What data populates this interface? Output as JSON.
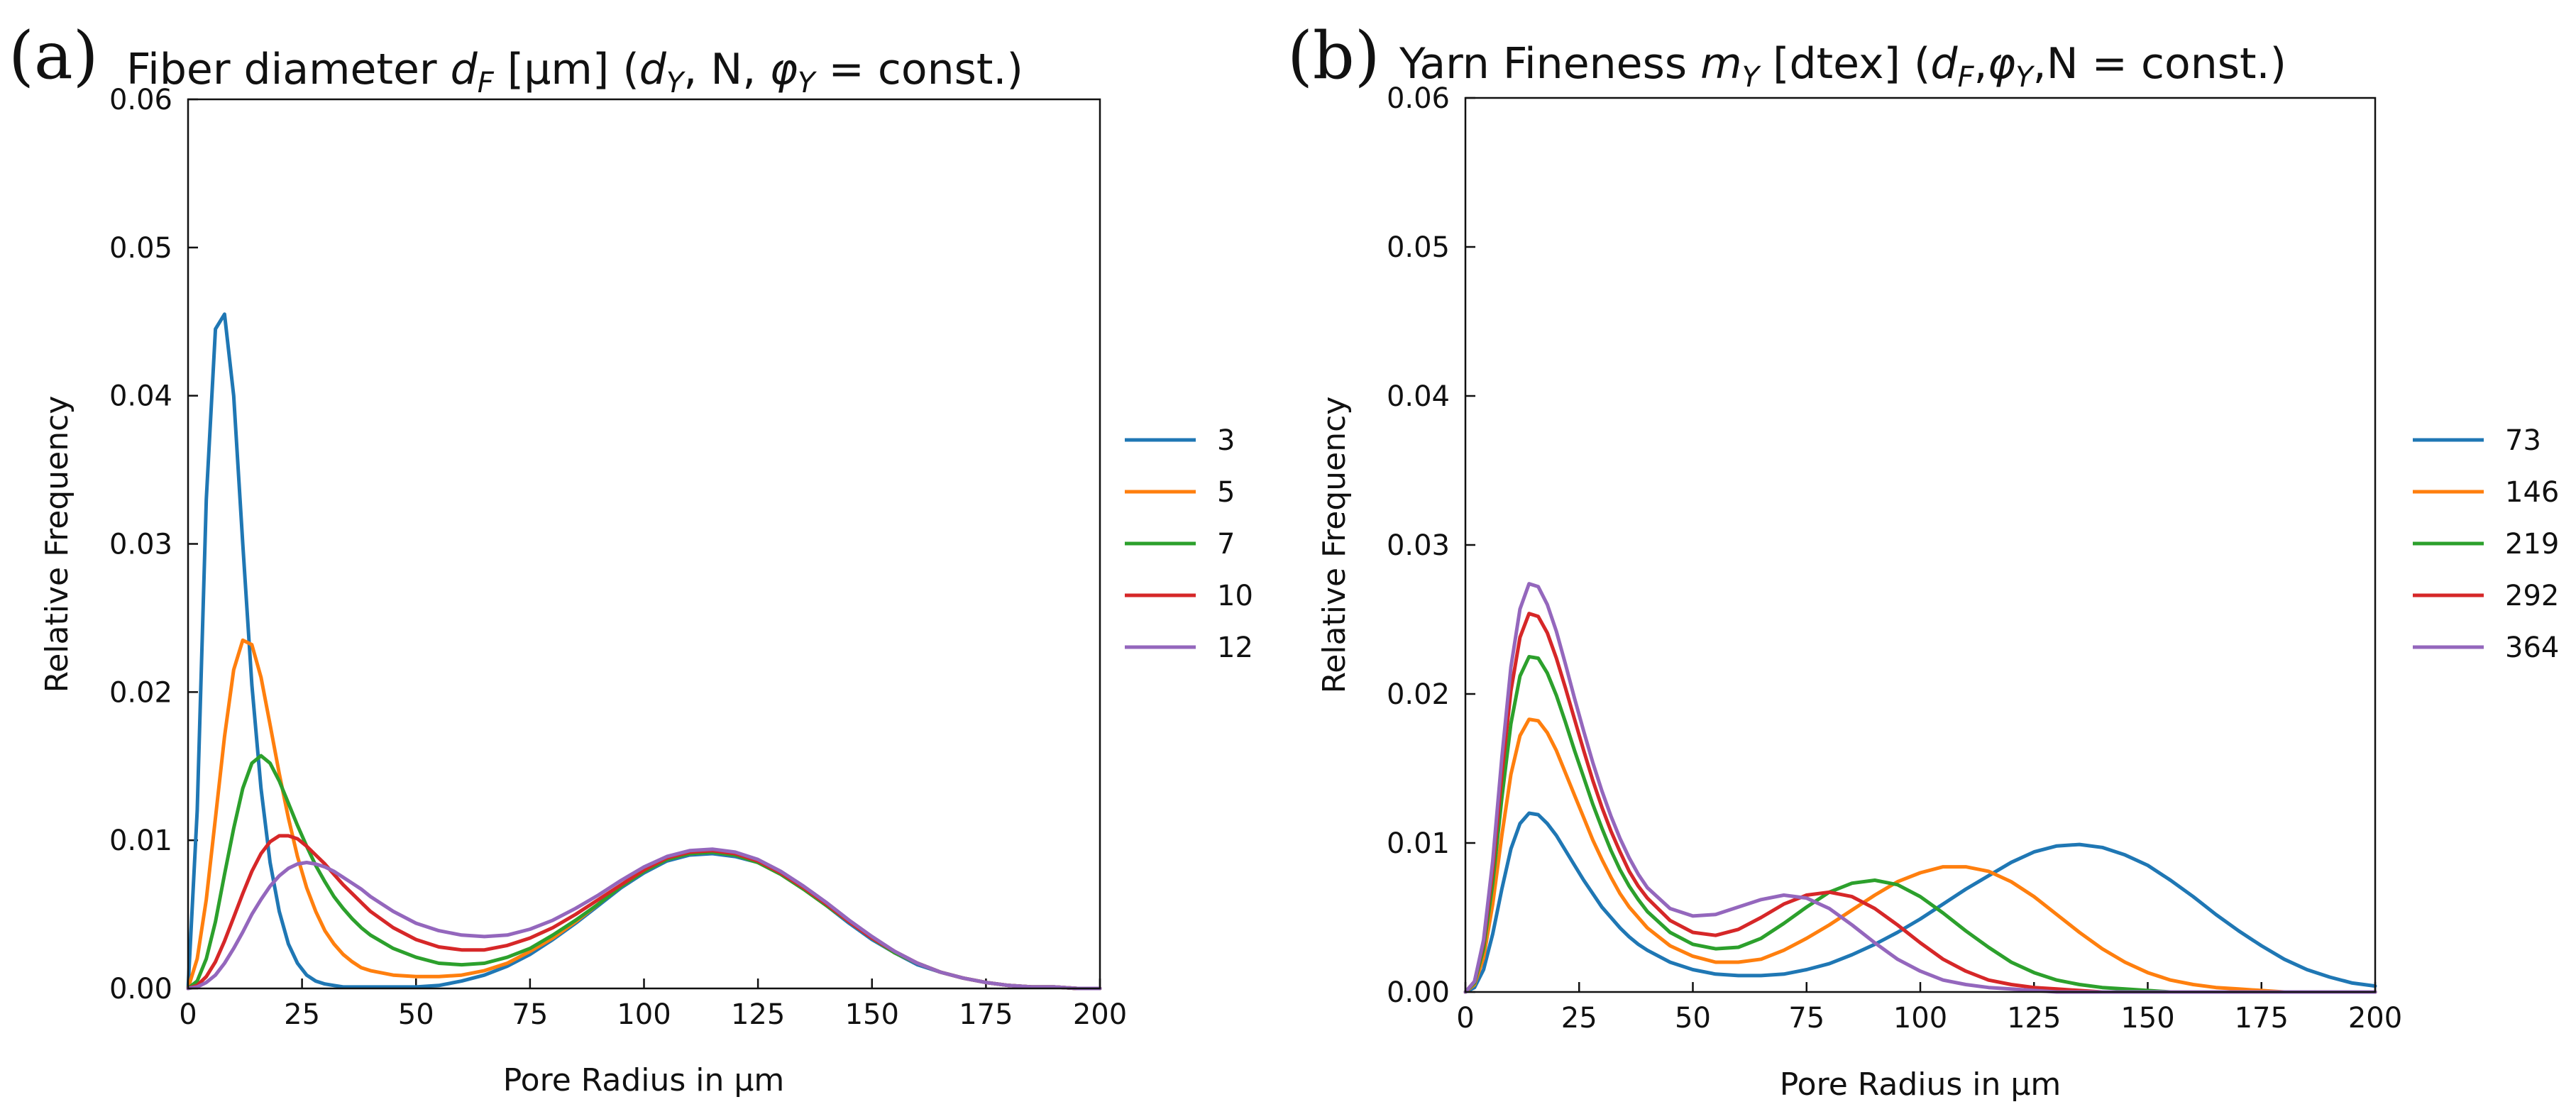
{
  "figure": {
    "panels": [
      "a",
      "b"
    ]
  },
  "colors": {
    "series": [
      "#1f77b4",
      "#ff7f0e",
      "#2ca02c",
      "#d62728",
      "#9467bd"
    ]
  },
  "chart_data": [
    {
      "type": "line",
      "panel_label": "(a)",
      "title": {
        "prefix": "Fiber diameter ",
        "symbol": "d",
        "symbol_sub": "F",
        "unit": " [µm] (",
        "p1": "d",
        "p1_sub": "Y",
        "p2": ", N, ",
        "p3": "φ",
        "p3_sub": "Y",
        "p4": " = const.)"
      },
      "xlabel": "Pore Radius in µm",
      "ylabel": "Relative Frequency",
      "xlim": [
        0,
        200
      ],
      "ylim": [
        0,
        0.06
      ],
      "xticks": [
        0,
        25,
        50,
        75,
        100,
        125,
        150,
        175,
        200
      ],
      "yticks": [
        "0.00",
        "0.01",
        "0.02",
        "0.03",
        "0.04",
        "0.05",
        "0.06"
      ],
      "legend_position": "right",
      "x": [
        0,
        2,
        4,
        6,
        8,
        10,
        12,
        14,
        16,
        18,
        20,
        22,
        24,
        26,
        28,
        30,
        32,
        34,
        36,
        38,
        40,
        45,
        50,
        55,
        60,
        65,
        70,
        75,
        80,
        85,
        90,
        95,
        100,
        105,
        110,
        115,
        120,
        125,
        130,
        135,
        140,
        145,
        150,
        155,
        160,
        165,
        170,
        175,
        180,
        185,
        190,
        195,
        200
      ],
      "series": [
        {
          "name": "3",
          "values": [
            0,
            0.012,
            0.033,
            0.0445,
            0.0455,
            0.04,
            0.03,
            0.0205,
            0.0135,
            0.0085,
            0.0052,
            0.003,
            0.0017,
            0.0009,
            0.0005,
            0.0003,
            0.0002,
            0.0001,
            0.0001,
            0.0001,
            0.0001,
            0.0001,
            0.0001,
            0.0002,
            0.0005,
            0.0009,
            0.0015,
            0.0023,
            0.0033,
            0.0044,
            0.0056,
            0.0068,
            0.0078,
            0.0086,
            0.009,
            0.0091,
            0.0089,
            0.0085,
            0.0077,
            0.0067,
            0.0056,
            0.0044,
            0.0033,
            0.0024,
            0.0016,
            0.0011,
            0.0007,
            0.0004,
            0.0002,
            0.0001,
            0.0001,
            0,
            0
          ]
        },
        {
          "name": "5",
          "values": [
            0,
            0.002,
            0.006,
            0.0115,
            0.017,
            0.0215,
            0.0235,
            0.0232,
            0.021,
            0.0178,
            0.0145,
            0.0115,
            0.0089,
            0.0068,
            0.0052,
            0.0039,
            0.003,
            0.0023,
            0.0018,
            0.0014,
            0.0012,
            0.0009,
            0.0008,
            0.0008,
            0.0009,
            0.0012,
            0.0017,
            0.0025,
            0.0034,
            0.0045,
            0.0057,
            0.0069,
            0.0079,
            0.0087,
            0.0091,
            0.0092,
            0.009,
            0.0085,
            0.0077,
            0.0067,
            0.0056,
            0.0045,
            0.0034,
            0.0024,
            0.0017,
            0.0011,
            0.0007,
            0.0004,
            0.0002,
            0.0001,
            0.0001,
            0,
            0
          ]
        },
        {
          "name": "7",
          "values": [
            0,
            0.0005,
            0.002,
            0.0045,
            0.0077,
            0.0108,
            0.0135,
            0.0152,
            0.0157,
            0.0152,
            0.014,
            0.0125,
            0.011,
            0.0096,
            0.0083,
            0.0072,
            0.0062,
            0.0054,
            0.0047,
            0.0041,
            0.0036,
            0.0027,
            0.0021,
            0.0017,
            0.0016,
            0.0017,
            0.0021,
            0.0027,
            0.0036,
            0.0046,
            0.0057,
            0.0069,
            0.0079,
            0.0087,
            0.0091,
            0.0092,
            0.009,
            0.0085,
            0.0077,
            0.0067,
            0.0056,
            0.0045,
            0.0034,
            0.0024,
            0.0017,
            0.0011,
            0.0007,
            0.0004,
            0.0002,
            0.0001,
            0.0001,
            0,
            0
          ]
        },
        {
          "name": "10",
          "values": [
            0,
            0.0002,
            0.0008,
            0.0018,
            0.0032,
            0.0048,
            0.0064,
            0.0079,
            0.0091,
            0.0099,
            0.0103,
            0.0103,
            0.0101,
            0.0096,
            0.009,
            0.0084,
            0.0077,
            0.007,
            0.0064,
            0.0058,
            0.0052,
            0.0041,
            0.0033,
            0.0028,
            0.0026,
            0.0026,
            0.0029,
            0.0034,
            0.0041,
            0.005,
            0.006,
            0.007,
            0.008,
            0.0088,
            0.0092,
            0.0093,
            0.0091,
            0.0086,
            0.0078,
            0.0068,
            0.0057,
            0.0045,
            0.0034,
            0.0025,
            0.0017,
            0.0011,
            0.0007,
            0.0004,
            0.0002,
            0.0001,
            0.0001,
            0,
            0
          ]
        },
        {
          "name": "12",
          "values": [
            0,
            0.0001,
            0.0004,
            0.0009,
            0.0017,
            0.0027,
            0.0038,
            0.005,
            0.006,
            0.0069,
            0.0076,
            0.0081,
            0.0084,
            0.0085,
            0.0084,
            0.0082,
            0.0079,
            0.0075,
            0.0071,
            0.0067,
            0.0062,
            0.0052,
            0.0044,
            0.0039,
            0.0036,
            0.0035,
            0.0036,
            0.004,
            0.0046,
            0.0054,
            0.0063,
            0.0073,
            0.0082,
            0.0089,
            0.0093,
            0.0094,
            0.0092,
            0.0087,
            0.0079,
            0.0069,
            0.0058,
            0.0046,
            0.0035,
            0.0025,
            0.0017,
            0.0011,
            0.0007,
            0.0004,
            0.0002,
            0.0001,
            0.0001,
            0,
            0
          ]
        }
      ]
    },
    {
      "type": "line",
      "panel_label": "(b)",
      "title": {
        "prefix": "Yarn Fineness ",
        "symbol": "m",
        "symbol_sub": "Y",
        "unit": " [dtex] (",
        "p1": "d",
        "p1_sub": "F",
        "p2": ",",
        "p3": "φ",
        "p3_sub": "Y",
        "p4": ",N = const.)"
      },
      "xlabel": "Pore Radius in µm",
      "ylabel": "Relative Frequency",
      "xlim": [
        0,
        200
      ],
      "ylim": [
        0,
        0.06
      ],
      "xticks": [
        0,
        25,
        50,
        75,
        100,
        125,
        150,
        175,
        200
      ],
      "yticks": [
        "0.00",
        "0.01",
        "0.02",
        "0.03",
        "0.04",
        "0.05",
        "0.06"
      ],
      "legend_position": "right",
      "x": [
        0,
        2,
        4,
        6,
        8,
        10,
        12,
        14,
        16,
        18,
        20,
        22,
        24,
        26,
        28,
        30,
        32,
        34,
        36,
        38,
        40,
        45,
        50,
        55,
        60,
        65,
        70,
        75,
        80,
        85,
        90,
        95,
        100,
        105,
        110,
        115,
        120,
        125,
        130,
        135,
        140,
        145,
        150,
        155,
        160,
        165,
        170,
        175,
        180,
        185,
        190,
        195,
        200
      ],
      "series": [
        {
          "name": "73",
          "values": [
            0,
            0.0003,
            0.0015,
            0.0039,
            0.0069,
            0.0096,
            0.0113,
            0.012,
            0.0119,
            0.0113,
            0.0105,
            0.0095,
            0.0085,
            0.0075,
            0.0066,
            0.0057,
            0.005,
            0.0043,
            0.0037,
            0.0032,
            0.0028,
            0.002,
            0.0015,
            0.0012,
            0.0011,
            0.0011,
            0.0012,
            0.0015,
            0.0019,
            0.0025,
            0.0032,
            0.004,
            0.0049,
            0.0059,
            0.0069,
            0.0078,
            0.0087,
            0.0094,
            0.0098,
            0.0099,
            0.0097,
            0.0092,
            0.0085,
            0.0075,
            0.0064,
            0.0052,
            0.0041,
            0.0031,
            0.0022,
            0.0015,
            0.001,
            0.0006,
            0.0004
          ]
        },
        {
          "name": "146",
          "values": [
            0,
            0.0005,
            0.0023,
            0.0059,
            0.0105,
            0.0146,
            0.0172,
            0.0183,
            0.0182,
            0.0174,
            0.0162,
            0.0147,
            0.0132,
            0.0117,
            0.0102,
            0.0089,
            0.0077,
            0.0066,
            0.0057,
            0.005,
            0.0043,
            0.0031,
            0.0024,
            0.002,
            0.002,
            0.0022,
            0.0028,
            0.0036,
            0.0045,
            0.0055,
            0.0065,
            0.0074,
            0.008,
            0.0084,
            0.0084,
            0.0081,
            0.0074,
            0.0064,
            0.0052,
            0.004,
            0.0029,
            0.002,
            0.0013,
            0.0008,
            0.0005,
            0.0003,
            0.0002,
            0.0001,
            0,
            0,
            0,
            0,
            0
          ]
        },
        {
          "name": "219",
          "values": [
            0,
            0.0006,
            0.0029,
            0.0073,
            0.013,
            0.018,
            0.0212,
            0.0225,
            0.0224,
            0.0214,
            0.0199,
            0.0181,
            0.0162,
            0.0144,
            0.0126,
            0.011,
            0.0095,
            0.0082,
            0.0071,
            0.0062,
            0.0054,
            0.004,
            0.0032,
            0.0029,
            0.003,
            0.0036,
            0.0046,
            0.0057,
            0.0067,
            0.0073,
            0.0075,
            0.0072,
            0.0064,
            0.0053,
            0.0041,
            0.003,
            0.002,
            0.0013,
            0.0008,
            0.0005,
            0.0003,
            0.0002,
            0.0001,
            0,
            0,
            0,
            0,
            0,
            0,
            0,
            0,
            0,
            0
          ]
        },
        {
          "name": "292",
          "values": [
            0,
            0.0007,
            0.0033,
            0.0082,
            0.0146,
            0.0202,
            0.0238,
            0.0254,
            0.0252,
            0.0241,
            0.0224,
            0.0204,
            0.0183,
            0.0162,
            0.0142,
            0.0124,
            0.0108,
            0.0094,
            0.0081,
            0.0071,
            0.0063,
            0.0048,
            0.004,
            0.0038,
            0.0042,
            0.005,
            0.0059,
            0.0065,
            0.0067,
            0.0064,
            0.0056,
            0.0045,
            0.0033,
            0.0022,
            0.0014,
            0.0008,
            0.0005,
            0.0003,
            0.0002,
            0.0001,
            0,
            0,
            0,
            0,
            0,
            0,
            0,
            0,
            0,
            0,
            0,
            0,
            0
          ]
        },
        {
          "name": "364",
          "values": [
            0,
            0.0007,
            0.0035,
            0.0088,
            0.0157,
            0.0218,
            0.0257,
            0.0274,
            0.0272,
            0.026,
            0.0242,
            0.022,
            0.0197,
            0.0175,
            0.0154,
            0.0135,
            0.0118,
            0.0103,
            0.009,
            0.0079,
            0.007,
            0.0056,
            0.0051,
            0.0052,
            0.0057,
            0.0062,
            0.0065,
            0.0063,
            0.0056,
            0.0045,
            0.0033,
            0.0022,
            0.0014,
            0.0008,
            0.0005,
            0.0003,
            0.0002,
            0.0001,
            0,
            0,
            0,
            0,
            0,
            0,
            0,
            0,
            0,
            0,
            0,
            0,
            0,
            0,
            0
          ]
        }
      ]
    }
  ]
}
